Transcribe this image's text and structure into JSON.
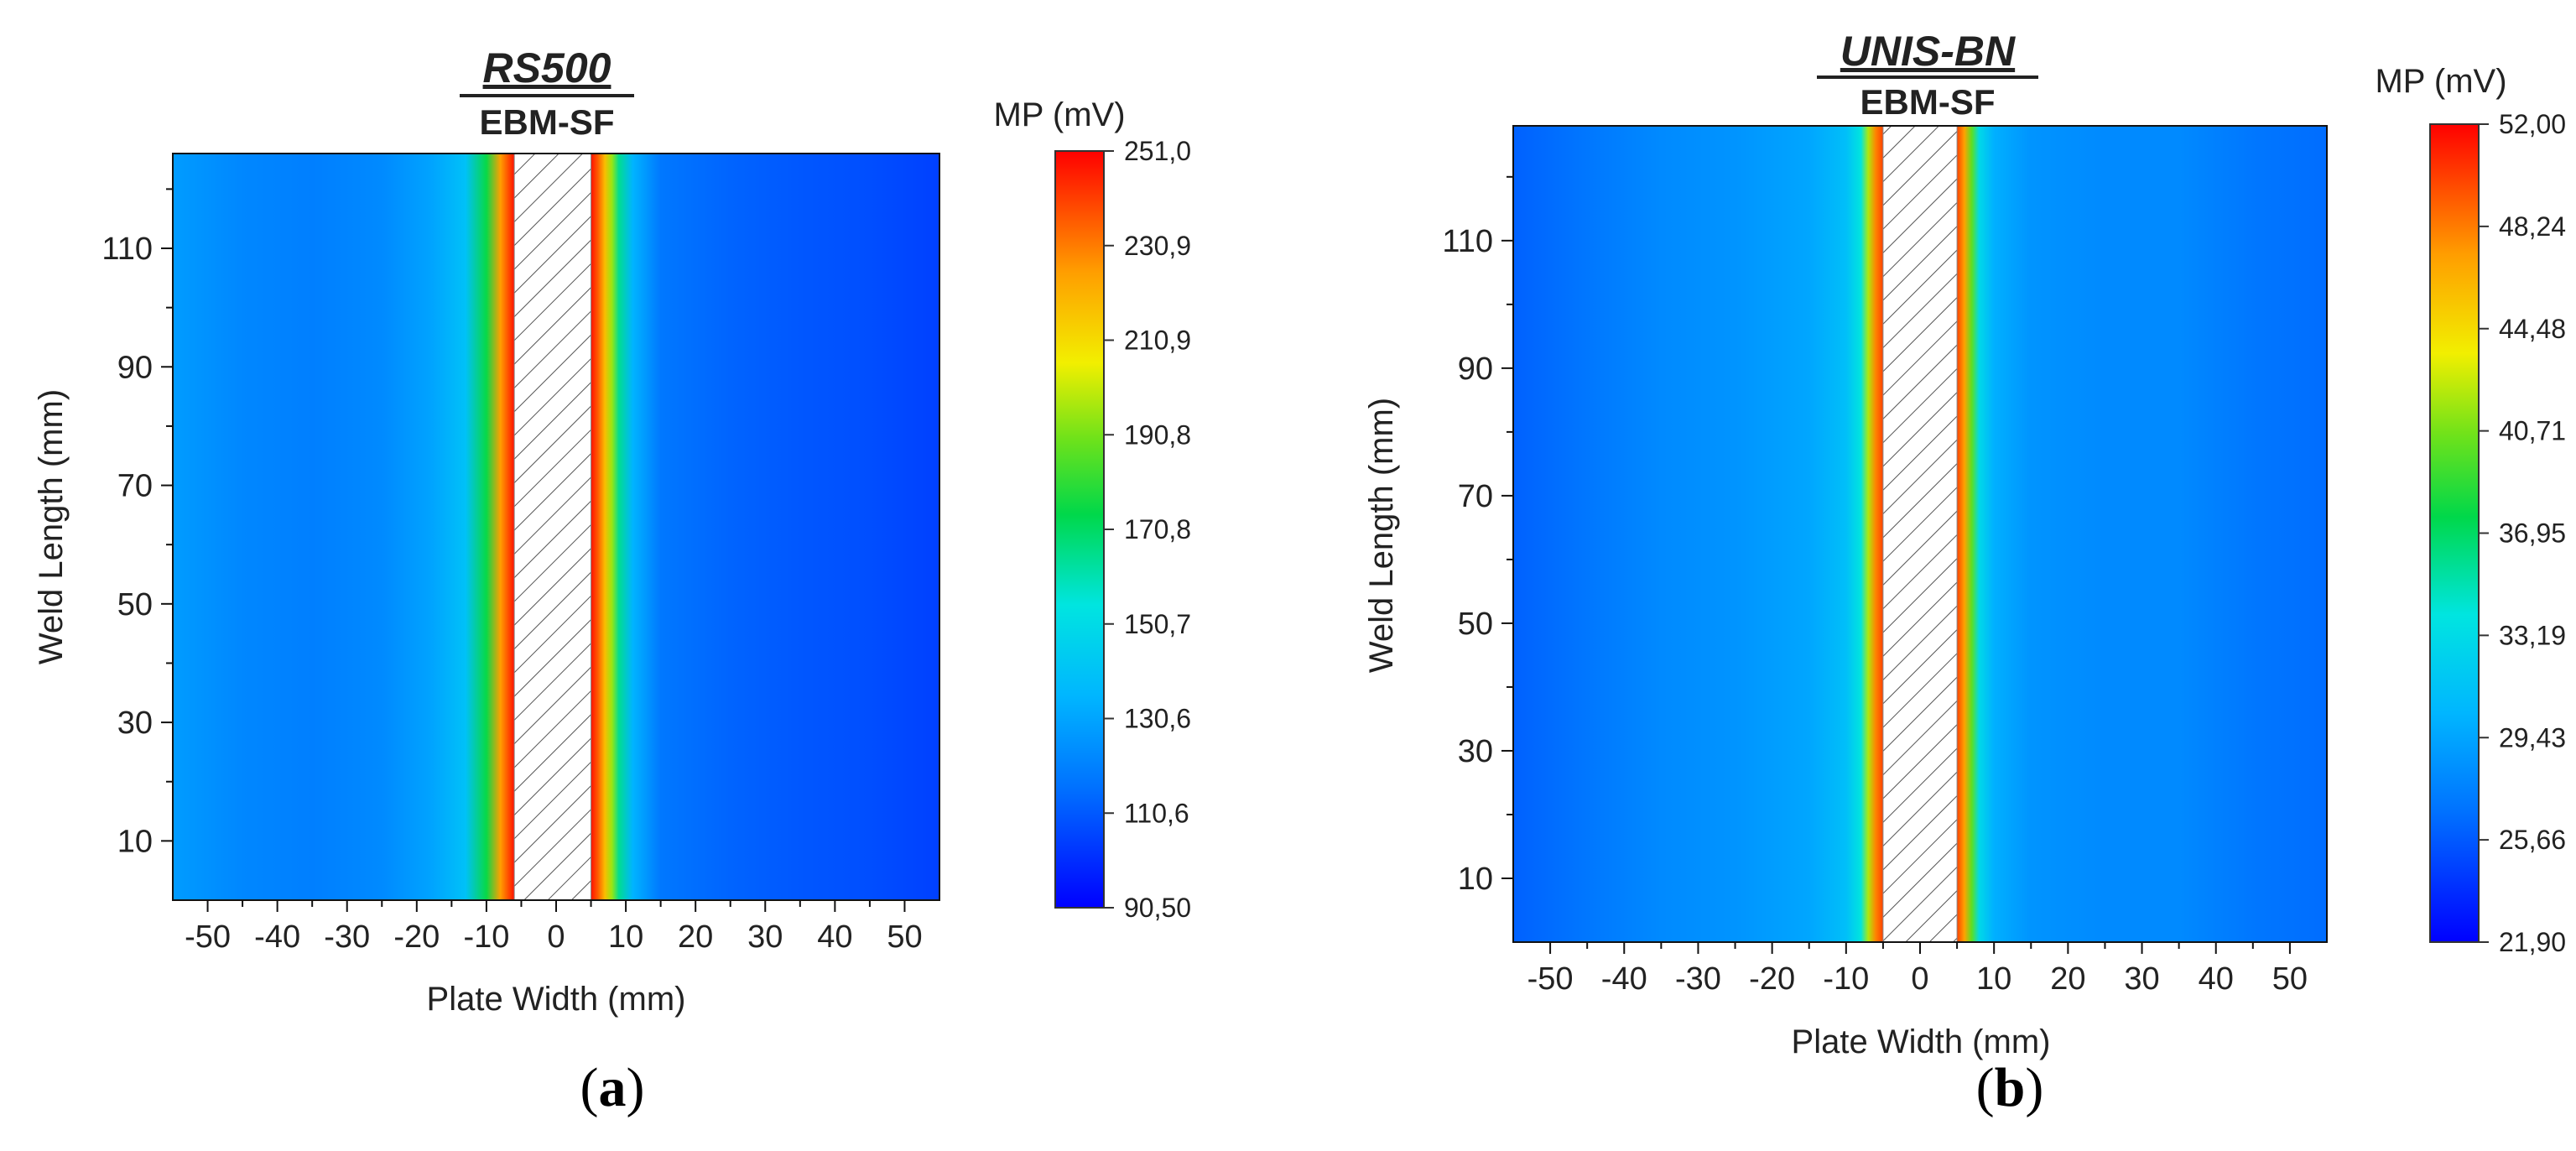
{
  "chart_data": [
    {
      "type": "heatmap",
      "panel_label": "a",
      "title": "RS500",
      "subtitle": "EBM-SF",
      "xlabel": "Plate Width (mm)",
      "ylabel": "Weld Length (mm)",
      "xlim": [
        -55,
        55
      ],
      "ylim": [
        0,
        126
      ],
      "xticks": [
        "-50",
        "-40",
        "-30",
        "-20",
        "-10",
        "0",
        "10",
        "20",
        "30",
        "40",
        "50"
      ],
      "xtick_values": [
        -50,
        -40,
        -30,
        -20,
        -10,
        0,
        10,
        20,
        30,
        40,
        50
      ],
      "yticks": [
        "10",
        "30",
        "50",
        "70",
        "90",
        "110"
      ],
      "ytick_values": [
        10,
        30,
        50,
        70,
        90,
        110
      ],
      "weld_zone": {
        "x_start": -6,
        "x_end": 5
      },
      "colorbar": {
        "label": "MP (mV)",
        "min": 90.5,
        "max": 251.0,
        "tick_labels": [
          "251,0",
          "230,9",
          "210,9",
          "190,8",
          "170,8",
          "150,7",
          "130,6",
          "110,6",
          "90,50"
        ],
        "tick_values": [
          251.0,
          230.9,
          210.9,
          190.8,
          170.8,
          150.7,
          130.6,
          110.6,
          90.5
        ]
      },
      "profile": {
        "x": [
          -55,
          -45,
          -35,
          -25,
          -18,
          -13,
          -10,
          -8,
          -6,
          5,
          6,
          7,
          8,
          9,
          11,
          15,
          25,
          35,
          45,
          55
        ],
        "mp": [
          128,
          122,
          120,
          123,
          130,
          140,
          175,
          225,
          248,
          248,
          236,
          218,
          195,
          165,
          135,
          118,
          113,
          110,
          108,
          105
        ]
      }
    },
    {
      "type": "heatmap",
      "panel_label": "b",
      "title": "UNIS-BN",
      "subtitle": "EBM-SF",
      "xlabel": "Plate Width (mm)",
      "ylabel": "Weld Length (mm)",
      "xlim": [
        -55,
        55
      ],
      "ylim": [
        0,
        128
      ],
      "xticks": [
        "-50",
        "-40",
        "-30",
        "-20",
        "-10",
        "0",
        "10",
        "20",
        "30",
        "40",
        "50"
      ],
      "xtick_values": [
        -50,
        -40,
        -30,
        -20,
        -10,
        0,
        10,
        20,
        30,
        40,
        50
      ],
      "yticks": [
        "10",
        "30",
        "50",
        "70",
        "90",
        "110"
      ],
      "ytick_values": [
        10,
        30,
        50,
        70,
        90,
        110
      ],
      "weld_zone": {
        "x_start": -5,
        "x_end": 5
      },
      "colorbar": {
        "label": "MP (mV)",
        "min": 21.9,
        "max": 52.0,
        "tick_labels": [
          "52,00",
          "48,24",
          "44,48",
          "40,71",
          "36,95",
          "33,19",
          "29,43",
          "25,66",
          "21,90"
        ],
        "tick_values": [
          52.0,
          48.24,
          44.48,
          40.71,
          36.95,
          33.19,
          29.43,
          25.66,
          21.9
        ]
      },
      "profile": {
        "x": [
          -55,
          -45,
          -35,
          -25,
          -15,
          -10,
          -8,
          -7,
          -6,
          -5,
          5,
          6,
          7,
          8,
          10,
          15,
          25,
          35,
          45,
          55
        ],
        "mp": [
          26.0,
          27.0,
          28.0,
          28.5,
          29.5,
          31.0,
          34.0,
          42.0,
          48.0,
          50.0,
          50.0,
          47.0,
          40.0,
          33.0,
          30.0,
          28.5,
          28.0,
          28.0,
          27.0,
          26.5
        ]
      }
    }
  ]
}
